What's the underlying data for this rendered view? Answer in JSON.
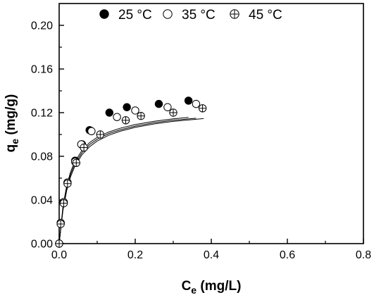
{
  "chart_data": {
    "type": "scatter",
    "xlabel": {
      "base": "C",
      "sub": "e",
      "rest": " (mg/L)"
    },
    "ylabel": {
      "base": "q",
      "sub": "e",
      "rest": " (mg/g)"
    },
    "xlim": [
      0,
      0.8
    ],
    "ylim": [
      0,
      0.22
    ],
    "xticks": [
      {
        "value": 0.0,
        "label": "0.0"
      },
      {
        "value": 0.2,
        "label": "0.2"
      },
      {
        "value": 0.4,
        "label": "0.4"
      },
      {
        "value": 0.6,
        "label": "0.6"
      },
      {
        "value": 0.8,
        "label": "0.8"
      }
    ],
    "yticks": [
      {
        "value": 0.0,
        "label": "0.00"
      },
      {
        "value": 0.04,
        "label": "0.04"
      },
      {
        "value": 0.08,
        "label": "0.08"
      },
      {
        "value": 0.12,
        "label": "0.12"
      },
      {
        "value": 0.16,
        "label": "0.16"
      },
      {
        "value": 0.2,
        "label": "0.20"
      }
    ],
    "grid": false,
    "legend_position": "top",
    "series": [
      {
        "name": "25 °C",
        "marker": "filled-circle",
        "points": [
          [
            0.0,
            0.0
          ],
          [
            0.004,
            0.019
          ],
          [
            0.012,
            0.038
          ],
          [
            0.022,
            0.056
          ],
          [
            0.042,
            0.076
          ],
          [
            0.06,
            0.091
          ],
          [
            0.08,
            0.104
          ],
          [
            0.132,
            0.12
          ],
          [
            0.178,
            0.125
          ],
          [
            0.262,
            0.128
          ],
          [
            0.34,
            0.131
          ]
        ],
        "fit": [
          [
            0.0,
            0.0
          ],
          [
            0.01,
            0.0341
          ],
          [
            0.02,
            0.0533
          ],
          [
            0.03,
            0.0657
          ],
          [
            0.04,
            0.0743
          ],
          [
            0.06,
            0.0855
          ],
          [
            0.08,
            0.0926
          ],
          [
            0.1,
            0.0974
          ],
          [
            0.13,
            0.1022
          ],
          [
            0.16,
            0.1057
          ],
          [
            0.2,
            0.1091
          ],
          [
            0.25,
            0.1121
          ],
          [
            0.3,
            0.1143
          ],
          [
            0.34,
            0.1156
          ]
        ]
      },
      {
        "name": "35 °C",
        "marker": "open-circle",
        "points": [
          [
            0.0,
            0.0
          ],
          [
            0.004,
            0.019
          ],
          [
            0.012,
            0.038
          ],
          [
            0.022,
            0.056
          ],
          [
            0.042,
            0.075
          ],
          [
            0.058,
            0.091
          ],
          [
            0.085,
            0.103
          ],
          [
            0.152,
            0.116
          ],
          [
            0.2,
            0.122
          ],
          [
            0.285,
            0.125
          ],
          [
            0.36,
            0.128
          ]
        ],
        "fit": [
          [
            0.0,
            0.0
          ],
          [
            0.01,
            0.0322
          ],
          [
            0.02,
            0.051
          ],
          [
            0.03,
            0.0634
          ],
          [
            0.04,
            0.072
          ],
          [
            0.06,
            0.0834
          ],
          [
            0.08,
            0.0907
          ],
          [
            0.1,
            0.0957
          ],
          [
            0.13,
            0.1007
          ],
          [
            0.16,
            0.1042
          ],
          [
            0.2,
            0.1077
          ],
          [
            0.25,
            0.1108
          ],
          [
            0.3,
            0.113
          ],
          [
            0.36,
            0.1149
          ]
        ]
      },
      {
        "name": "45 °C",
        "marker": "crossed-circle",
        "points": [
          [
            0.0,
            0.0
          ],
          [
            0.004,
            0.018
          ],
          [
            0.012,
            0.037
          ],
          [
            0.022,
            0.055
          ],
          [
            0.045,
            0.074
          ],
          [
            0.065,
            0.088
          ],
          [
            0.108,
            0.1
          ],
          [
            0.175,
            0.113
          ],
          [
            0.215,
            0.117
          ],
          [
            0.3,
            0.12
          ],
          [
            0.377,
            0.124
          ]
        ],
        "fit": [
          [
            0.0,
            0.0
          ],
          [
            0.01,
            0.0305
          ],
          [
            0.02,
            0.0489
          ],
          [
            0.03,
            0.0612
          ],
          [
            0.04,
            0.0699
          ],
          [
            0.06,
            0.0814
          ],
          [
            0.08,
            0.0888
          ],
          [
            0.1,
            0.094
          ],
          [
            0.13,
            0.0992
          ],
          [
            0.16,
            0.1029
          ],
          [
            0.2,
            0.1065
          ],
          [
            0.25,
            0.1097
          ],
          [
            0.3,
            0.112
          ],
          [
            0.38,
            0.1146
          ]
        ]
      }
    ]
  }
}
